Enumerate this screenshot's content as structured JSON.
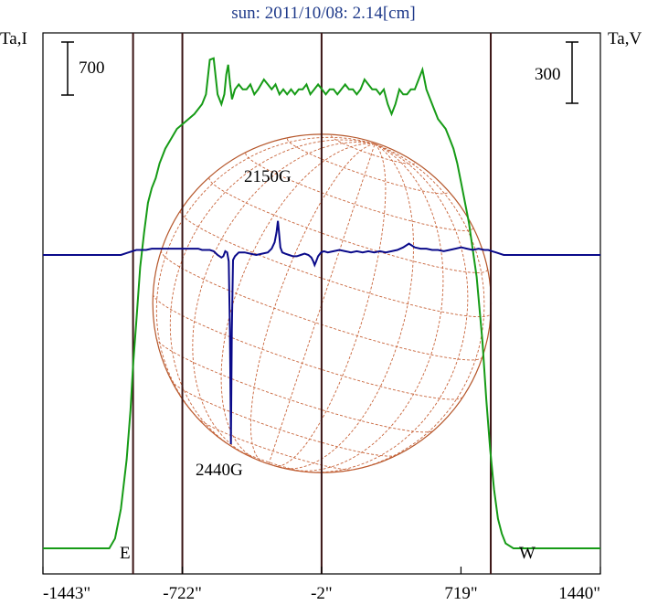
{
  "chart_data": {
    "type": "line",
    "title": "sun: 2011/10/08: 2.14[cm]",
    "left_axis_label": "Ta,I",
    "right_axis_label": "Ta,V",
    "left_scale_bar_label": "700",
    "right_scale_bar_label": "300",
    "east_label": "E",
    "west_label": "W",
    "xlim": [
      -1443,
      1440
    ],
    "x_ticks": [
      {
        "value": -1443,
        "label": "-1443\""
      },
      {
        "value": -722,
        "label": "-722\""
      },
      {
        "value": -2,
        "label": "-2\""
      },
      {
        "value": 719,
        "label": "719\""
      },
      {
        "value": 1440,
        "label": "1440\""
      }
    ],
    "vertical_markers": [
      -977,
      -722,
      -2,
      873
    ],
    "disk_radius_arcsec": 875,
    "annotations": [
      {
        "text": "2150G",
        "x": -230
      },
      {
        "text": "2440G",
        "x": -470
      }
    ],
    "series": [
      {
        "name": "I",
        "color": "#169b16",
        "ylim": [
          0,
          100
        ],
        "x": [
          -1443,
          -1100,
          -1070,
          -1040,
          -1010,
          -990,
          -977,
          -960,
          -940,
          -920,
          -900,
          -880,
          -860,
          -840,
          -810,
          -780,
          -750,
          -720,
          -690,
          -660,
          -640,
          -620,
          -600,
          -580,
          -560,
          -540,
          -520,
          -505,
          -495,
          -485,
          -475,
          -465,
          -450,
          -430,
          -410,
          -390,
          -370,
          -350,
          -330,
          -300,
          -280,
          -260,
          -240,
          -220,
          -200,
          -180,
          -160,
          -140,
          -120,
          -100,
          -80,
          -60,
          -40,
          -20,
          0,
          20,
          40,
          60,
          80,
          100,
          120,
          140,
          160,
          180,
          200,
          220,
          240,
          260,
          280,
          300,
          320,
          340,
          360,
          380,
          400,
          420,
          440,
          460,
          480,
          500,
          520,
          540,
          560,
          580,
          600,
          620,
          640,
          660,
          680,
          700,
          720,
          760,
          800,
          830,
          850,
          870,
          890,
          910,
          930,
          950,
          970,
          990,
          1020,
          1060,
          1100,
          1440
        ],
        "values": [
          0,
          0,
          2,
          8,
          18,
          28,
          37,
          46,
          57,
          64,
          70,
          73,
          75,
          78,
          81,
          83,
          85,
          86,
          87,
          88,
          89,
          90,
          92,
          99,
          99.3,
          92,
          90,
          92,
          96,
          98,
          94,
          91,
          93,
          94,
          93,
          93,
          94,
          92,
          93,
          95,
          94,
          93,
          94,
          92,
          93,
          92,
          93,
          92,
          93,
          93,
          94,
          92,
          93,
          94,
          93,
          92,
          93,
          93,
          92,
          93,
          94,
          93,
          93,
          92,
          93,
          95,
          94,
          93,
          93,
          92,
          93,
          90,
          88,
          90,
          93,
          92,
          92,
          93,
          93,
          95,
          97,
          93,
          91,
          89,
          87,
          86,
          85,
          83,
          81,
          78,
          74,
          66,
          55,
          42,
          30,
          20,
          12,
          6,
          3,
          1,
          0.5,
          0,
          0,
          0,
          0,
          0
        ]
      },
      {
        "name": "V",
        "color": "#0a0a8a",
        "ylim": [
          -100,
          100
        ],
        "x": [
          -1443,
          -1040,
          -1000,
          -960,
          -940,
          -910,
          -880,
          -850,
          -820,
          -790,
          -760,
          -730,
          -700,
          -680,
          -660,
          -640,
          -620,
          -600,
          -580,
          -560,
          -540,
          -520,
          -510,
          -500,
          -490,
          -482,
          -476,
          -471,
          -466,
          -460,
          -450,
          -430,
          -400,
          -370,
          -340,
          -310,
          -280,
          -260,
          -245,
          -235,
          -228,
          -222,
          -215,
          -205,
          -190,
          -170,
          -150,
          -130,
          -110,
          -90,
          -70,
          -55,
          -45,
          -38,
          -30,
          -20,
          -5,
          10,
          30,
          60,
          90,
          120,
          150,
          180,
          210,
          240,
          270,
          300,
          330,
          360,
          390,
          420,
          450,
          480,
          510,
          540,
          570,
          600,
          630,
          660,
          690,
          720,
          750,
          780,
          810,
          840,
          860,
          880,
          900,
          940,
          1000,
          1440
        ],
        "values": [
          0,
          0,
          2,
          4,
          4,
          4,
          5,
          5,
          5,
          5,
          5,
          5,
          5,
          5,
          5,
          5,
          4,
          4,
          4,
          3,
          0,
          -2,
          -1,
          3,
          2,
          -5,
          -60,
          -150,
          -60,
          -4,
          -1,
          2,
          2,
          1,
          0,
          1,
          2,
          5,
          10,
          18,
          27,
          18,
          6,
          2,
          1,
          0,
          -1,
          -1,
          0,
          1,
          0,
          -2,
          -5,
          -8,
          -5,
          -1,
          2,
          3,
          2,
          3,
          4,
          3,
          2,
          3,
          2,
          3,
          2,
          3,
          2,
          3,
          4,
          6,
          9,
          6,
          5,
          5,
          4,
          4,
          3,
          4,
          5,
          6,
          5,
          4,
          5,
          4,
          4,
          3,
          2,
          0,
          0,
          0
        ]
      }
    ]
  }
}
